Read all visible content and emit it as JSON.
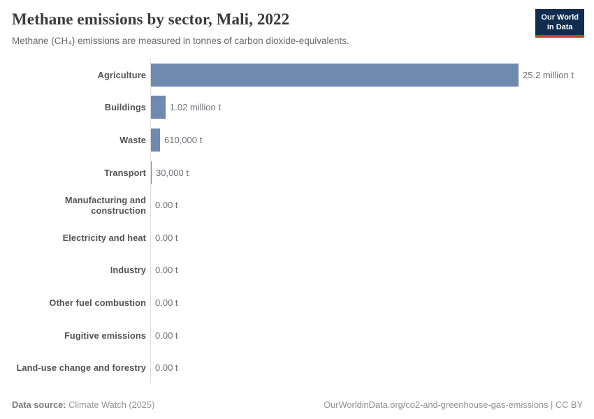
{
  "header": {
    "title": "Methane emissions by sector, Mali, 2022",
    "subtitle": "Methane (CH₄) emissions are measured in tonnes of carbon dioxide-equivalents.",
    "logo": {
      "line1": "Our World",
      "line2": "in Data"
    }
  },
  "chart_data": {
    "type": "bar",
    "orientation": "horizontal",
    "title": "Methane emissions by sector, Mali, 2022",
    "unit": "tonnes of carbon dioxide-equivalents",
    "categories": [
      "Agriculture",
      "Buildings",
      "Waste",
      "Transport",
      "Manufacturing and construction",
      "Electricity and heat",
      "Industry",
      "Other fuel combustion",
      "Fugitive emissions",
      "Land-use change and forestry"
    ],
    "values": [
      25200000,
      1020000,
      610000,
      30000,
      0,
      0,
      0,
      0,
      0,
      0
    ],
    "value_labels": [
      "25.2 million t",
      "1.02 million t",
      "610,000 t",
      "30,000 t",
      "0.00 t",
      "0.00 t",
      "0.00 t",
      "0.00 t",
      "0.00 t",
      "0.00 t"
    ],
    "xlim": [
      0,
      25200000
    ],
    "grid": false,
    "legend": "none"
  },
  "colors": {
    "bar": "#7089af",
    "axis_line": "#dedede",
    "logo_background": "#102d50",
    "logo_stripe": "#d43c2a",
    "title_text": "#3a3a3a",
    "subtitle_text": "#666a6e",
    "category_label": "#515457",
    "value_label": "#6d7079",
    "footer_text": "#8b8b8b"
  },
  "footer": {
    "data_source_label": "Data source:",
    "data_source_value": "Climate Watch (2025)",
    "right_text": "OurWorldinData.org/co2-and-greenhouse-gas-emissions | CC BY"
  }
}
